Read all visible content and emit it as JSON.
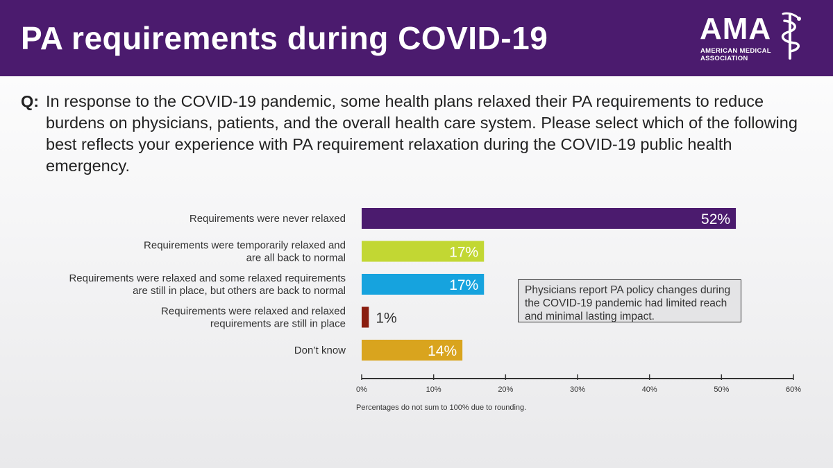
{
  "header": {
    "title": "PA requirements during COVID-19",
    "logo": {
      "wordmark": "AMA",
      "line1": "AMERICAN MEDICAL",
      "line2": "ASSOCIATION"
    }
  },
  "question": {
    "label": "Q:",
    "text": "In response to the COVID-19 pandemic, some health plans relaxed their PA requirements to reduce burdens on physicians, patients, and the overall health care system. Please select which of the following best reflects your experience with PA requirement relaxation during the COVID-19 public health emergency."
  },
  "callout": {
    "text": "Physicians report PA policy changes during the COVID-19 pandemic had limited reach and minimal lasting impact."
  },
  "footnote": "Percentages do not sum to 100% due to rounding.",
  "colors": {
    "header_bg": "#4b1b6e",
    "text": "#333333"
  },
  "chart_data": {
    "type": "bar",
    "orientation": "horizontal",
    "categories": [
      [
        "Requirements were never relaxed"
      ],
      [
        "Requirements were temporarily relaxed and",
        "are all back to normal"
      ],
      [
        "Requirements were relaxed and some relaxed requirements",
        "are still in place, but others are back to normal"
      ],
      [
        "Requirements were relaxed and relaxed",
        "requirements are still in place"
      ],
      [
        "Don’t know"
      ]
    ],
    "values": [
      52,
      17,
      17,
      1,
      14
    ],
    "value_labels": [
      "52%",
      "17%",
      "17%",
      "1%",
      "14%"
    ],
    "bar_colors": [
      "#4b1b6e",
      "#c2d733",
      "#16a3de",
      "#8a1d0f",
      "#d9a41e"
    ],
    "label_inside": [
      true,
      true,
      true,
      false,
      true
    ],
    "xlim": [
      0,
      60
    ],
    "xticks": [
      0,
      10,
      20,
      30,
      40,
      50,
      60
    ],
    "xtick_labels": [
      "0%",
      "10%",
      "20%",
      "30%",
      "40%",
      "50%",
      "60%"
    ],
    "grid": false,
    "legend": "none"
  }
}
